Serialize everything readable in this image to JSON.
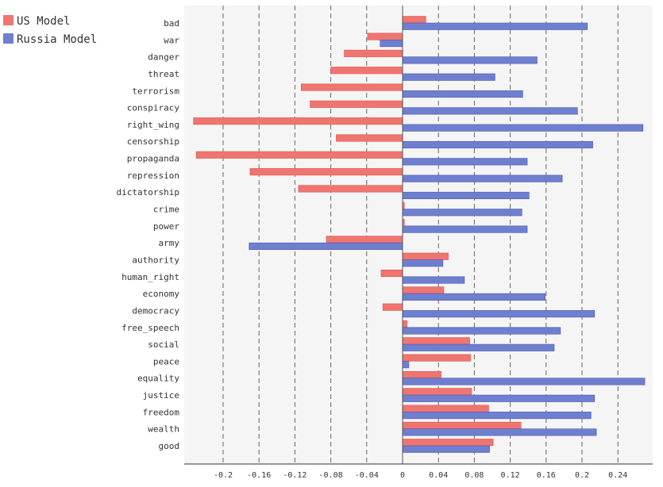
{
  "chart_data": {
    "type": "bar",
    "orientation": "horizontal",
    "categories": [
      "bad",
      "war",
      "danger",
      "threat",
      "terrorism",
      "conspiracy",
      "right_wing",
      "censorship",
      "propaganda",
      "repression",
      "dictatorship",
      "crime",
      "power",
      "army",
      "authority",
      "human_right",
      "economy",
      "democracy",
      "free_speech",
      "social",
      "peace",
      "equality",
      "justice",
      "freedom",
      "wealth",
      "good"
    ],
    "series": [
      {
        "name": "US Model",
        "color": "#f07470",
        "values": [
          0.026,
          -0.039,
          -0.065,
          -0.08,
          -0.113,
          -0.103,
          -0.233,
          -0.074,
          -0.23,
          -0.17,
          -0.116,
          0.002,
          0.002,
          -0.085,
          0.051,
          -0.024,
          0.046,
          -0.022,
          0.005,
          0.075,
          0.076,
          0.043,
          0.077,
          0.096,
          0.132,
          0.101
        ]
      },
      {
        "name": "Russia Model",
        "color": "#6f7fcf",
        "values": [
          0.206,
          -0.025,
          0.15,
          0.103,
          0.134,
          0.195,
          0.268,
          0.212,
          0.139,
          0.178,
          0.141,
          0.133,
          0.139,
          -0.171,
          0.045,
          0.069,
          0.159,
          0.214,
          0.176,
          0.169,
          0.007,
          0.27,
          0.214,
          0.21,
          0.216,
          0.097
        ]
      }
    ],
    "xlim": [
      -0.24,
      0.28
    ],
    "xticks": [
      "-0.2",
      "-0.16",
      "-0.12",
      "-0.08",
      "-0.04",
      "0",
      "0.04",
      "0.08",
      "0.12",
      "0.16",
      "0.2",
      "0.24"
    ],
    "grid": "vertical dashed",
    "legend": "top-left"
  }
}
